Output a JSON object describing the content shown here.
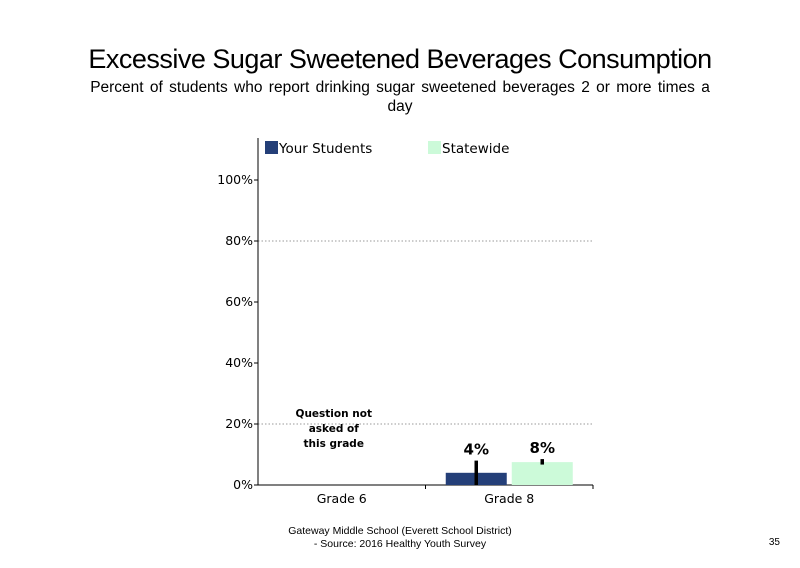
{
  "footer": {
    "line1": "Gateway Middle School (Everett School District)",
    "line2": "- Source: 2016 Healthy Youth Survey",
    "page_number": "35"
  },
  "chart_data": {
    "type": "bar",
    "title": "Excessive Sugar Sweetened Beverages Consumption",
    "subtitle": "Percent of students who report drinking sugar sweetened beverages 2 or more times a day",
    "xlabel": "",
    "ylabel": "",
    "ylim": [
      0,
      100
    ],
    "yticks": [
      "0%",
      "20%",
      "40%",
      "60%",
      "80%",
      "100%"
    ],
    "grid_lines_at": [
      20,
      80
    ],
    "categories": [
      "Grade 6",
      "Grade 8"
    ],
    "legend_position": "top",
    "series": [
      {
        "name": "Your Students",
        "color": "#243f78",
        "values": [
          null,
          4
        ],
        "labels": [
          "",
          "4%"
        ],
        "error_high": [
          null,
          8
        ],
        "error_low": [
          null,
          0
        ]
      },
      {
        "name": "Statewide",
        "color": "#ccfad9",
        "values": [
          null,
          7.5
        ],
        "labels": [
          "",
          "8%"
        ],
        "error_high": [
          null,
          8.5
        ],
        "error_low": [
          null,
          6.7
        ]
      }
    ],
    "annotations": [
      {
        "category": "Grade 6",
        "lines": [
          "Question not",
          "asked of",
          "this grade"
        ]
      }
    ]
  }
}
